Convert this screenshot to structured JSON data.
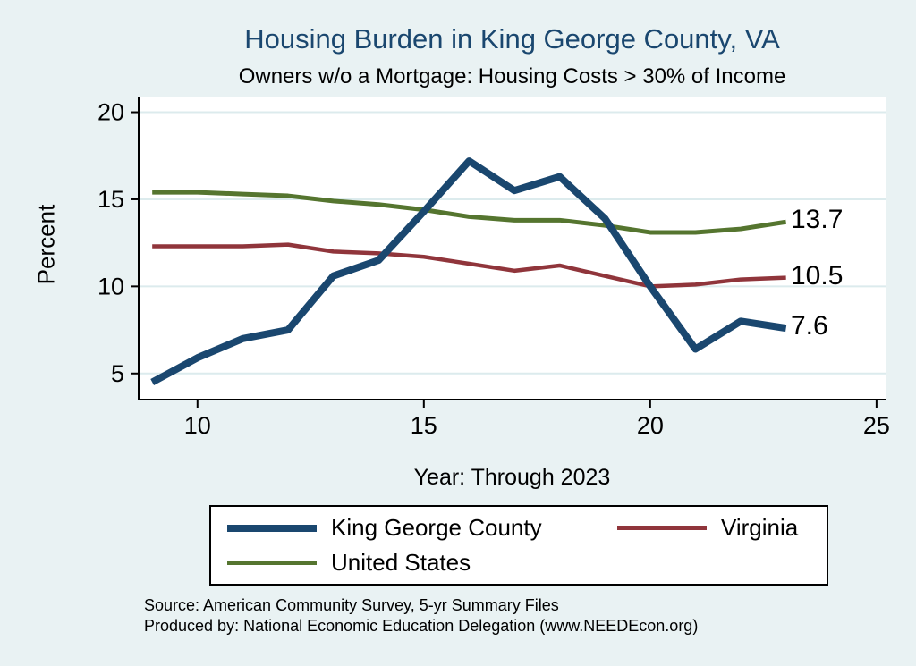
{
  "title": "Housing Burden in King George County, VA",
  "subtitle": "Owners w/o a Mortgage: Housing Costs > 30% of Income",
  "axis": {
    "ylabel": "Percent",
    "xlabel": "Year: Through 2023"
  },
  "end_labels": {
    "united_states": "13.7",
    "virginia": "10.5",
    "king_george": "7.6"
  },
  "legend": {
    "items": [
      {
        "label": "King George County"
      },
      {
        "label": "Virginia"
      },
      {
        "label": "United States"
      }
    ]
  },
  "source": {
    "line1": "Source: American Community Survey, 5-yr Summary Files",
    "line2": "Produced by: National Economic Education Delegation (www.NEEDEcon.org)"
  },
  "colors": {
    "title": "#1a476f",
    "background": "#e9f2f3",
    "plot_background": "#ffffff",
    "gridline": "#dcebed",
    "king_george": "#1a476f",
    "virginia": "#90353b",
    "united_states": "#55752f"
  },
  "chart_data": {
    "type": "line",
    "title": "Housing Burden in King George County, VA",
    "subtitle": "Owners w/o a Mortgage: Housing Costs > 30% of Income",
    "xlabel": "Year: Through 2023",
    "ylabel": "Percent",
    "x": [
      9,
      10,
      11,
      12,
      13,
      14,
      15,
      16,
      17,
      18,
      19,
      20,
      21,
      22,
      23
    ],
    "series": [
      {
        "name": "King George County",
        "color": "#1a476f",
        "line_width": 8,
        "values": [
          4.5,
          5.9,
          7.0,
          7.5,
          10.6,
          11.5,
          14.3,
          17.2,
          15.5,
          16.3,
          13.9,
          10.0,
          6.4,
          8.0,
          7.6
        ],
        "end_label": "7.6"
      },
      {
        "name": "Virginia",
        "color": "#90353b",
        "line_width": 4.5,
        "values": [
          12.3,
          12.3,
          12.3,
          12.4,
          12.0,
          11.9,
          11.7,
          11.3,
          10.9,
          11.2,
          10.6,
          10.0,
          10.1,
          10.4,
          10.5
        ],
        "end_label": "10.5"
      },
      {
        "name": "United States",
        "color": "#55752f",
        "line_width": 5,
        "values": [
          15.4,
          15.4,
          15.3,
          15.2,
          14.9,
          14.7,
          14.4,
          14.0,
          13.8,
          13.8,
          13.5,
          13.1,
          13.1,
          13.3,
          13.7
        ],
        "end_label": "13.7"
      }
    ],
    "xticks": [
      10,
      15,
      20,
      25
    ],
    "yticks": [
      5,
      10,
      15,
      20
    ],
    "xlim": [
      8.7,
      25.2
    ],
    "ylim": [
      3.5,
      20.9
    ],
    "grid": "horizontal",
    "legend_position": "bottom"
  }
}
